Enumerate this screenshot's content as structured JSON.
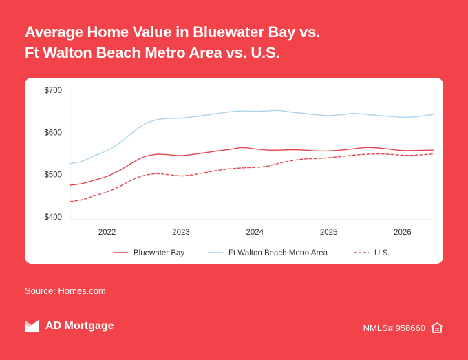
{
  "header": {
    "title_line1": "Average Home Value in Bluewater Bay vs.",
    "title_line2": "Ft Walton Beach Metro Area vs. U.S."
  },
  "footer": {
    "source": "Source: Homes.com",
    "brand": "AD Mortgage",
    "nmls": "NMLS# 958660",
    "logo_icon": "ad-mortgage-logo-icon",
    "housing_icon": "equal-housing-icon"
  },
  "colors": {
    "background": "#f2434a",
    "card": "#ffffff",
    "bluewater": "#e0474d",
    "metro": "#a9d2ea",
    "us": "#e0474d"
  },
  "chart_data": {
    "type": "line",
    "title": "Average Home Value in Bluewater Bay vs. Ft Walton Beach Metro Area vs. U.S.",
    "xlabel": "",
    "ylabel": "",
    "x_ticks": [
      "2022",
      "2023",
      "2024",
      "2025",
      "2026"
    ],
    "x_tick_values": [
      2022,
      2023,
      2024,
      2025,
      2026
    ],
    "y_ticks": [
      "$400",
      "$500",
      "$600",
      "$700"
    ],
    "y_tick_values": [
      400,
      500,
      600,
      700
    ],
    "xlim": [
      2021.5,
      2026.42
    ],
    "ylim": [
      400,
      700
    ],
    "grid": false,
    "legend_position": "bottom",
    "x": [
      2021.5,
      2021.67,
      2021.83,
      2022.0,
      2022.17,
      2022.33,
      2022.5,
      2022.67,
      2022.83,
      2023.0,
      2023.17,
      2023.33,
      2023.5,
      2023.67,
      2023.83,
      2024.0,
      2024.17,
      2024.33,
      2024.5,
      2024.67,
      2024.83,
      2025.0,
      2025.17,
      2025.33,
      2025.5,
      2025.67,
      2025.83,
      2026.0,
      2026.17,
      2026.42
    ],
    "series": [
      {
        "name": "Bluewater Bay",
        "style": "solid",
        "values": [
          475,
          479,
          487,
          496,
          510,
          527,
          542,
          548,
          547,
          545,
          548,
          552,
          556,
          560,
          564,
          561,
          558,
          558,
          559,
          558,
          556,
          556,
          558,
          561,
          564,
          563,
          560,
          557,
          557,
          558
        ]
      },
      {
        "name": "Ft Walton Beach Metro Area",
        "style": "solid",
        "values": [
          526,
          532,
          545,
          557,
          575,
          598,
          619,
          630,
          633,
          634,
          637,
          641,
          645,
          649,
          651,
          650,
          651,
          652,
          648,
          645,
          642,
          640,
          642,
          645,
          643,
          640,
          638,
          636,
          637,
          643
        ]
      },
      {
        "name": "U.S.",
        "style": "dashed",
        "values": [
          436,
          441,
          450,
          459,
          472,
          487,
          498,
          502,
          500,
          497,
          500,
          505,
          510,
          514,
          516,
          517,
          520,
          527,
          533,
          537,
          538,
          540,
          543,
          546,
          548,
          549,
          548,
          546,
          546,
          549
        ]
      }
    ]
  }
}
